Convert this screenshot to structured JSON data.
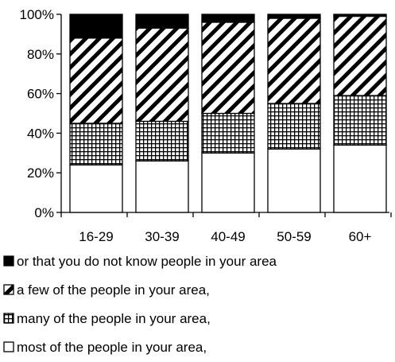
{
  "chart_data": {
    "type": "bar",
    "stacked": true,
    "categories": [
      "16-29",
      "30-39",
      "40-49",
      "50-59",
      "60+"
    ],
    "series": [
      {
        "name": "most of the people in your area,",
        "values": [
          24,
          26,
          30,
          32,
          34
        ],
        "pattern": "plain"
      },
      {
        "name": "many of the people in your area,",
        "values": [
          21,
          20,
          20,
          23,
          25
        ],
        "pattern": "grid"
      },
      {
        "name": "a few of the people in your area,",
        "values": [
          43,
          47,
          46,
          43,
          40
        ],
        "pattern": "diagonal"
      },
      {
        "name": "or that you do not know people in your area",
        "values": [
          12,
          7,
          4,
          2,
          1
        ],
        "pattern": "solid"
      }
    ],
    "yticks": [
      "0%",
      "20%",
      "40%",
      "60%",
      "80%",
      "100%"
    ],
    "ylim": [
      0,
      100
    ],
    "legend_position": "bottom",
    "colors": {
      "bar_fill": "#ffffff",
      "stroke": "#000000"
    }
  }
}
